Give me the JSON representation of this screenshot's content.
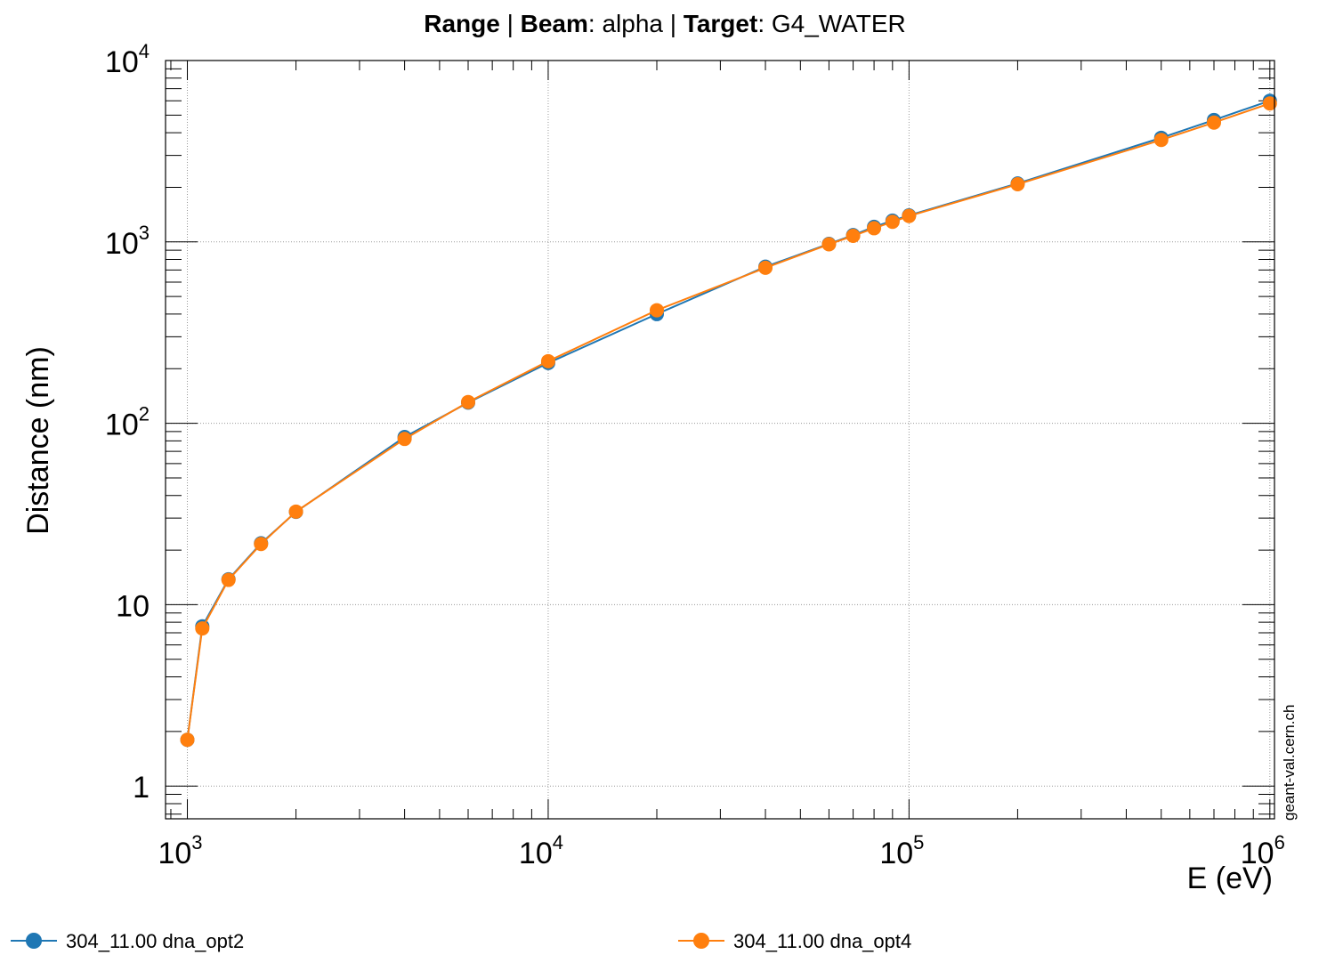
{
  "chart_data": {
    "type": "line",
    "title_parts": [
      {
        "text": "Range",
        "bold": true
      },
      {
        "text": " | ",
        "bold": false
      },
      {
        "text": "Beam",
        "bold": true
      },
      {
        "text": ": alpha | ",
        "bold": false
      },
      {
        "text": "Target",
        "bold": true
      },
      {
        "text": ": G4_WATER",
        "bold": false
      }
    ],
    "xlabel": "E (eV)",
    "ylabel": "Distance (nm)",
    "x_scale": "log",
    "y_scale": "log",
    "xlim": [
      870,
      1030000
    ],
    "ylim": [
      0.66,
      10000
    ],
    "grid": true,
    "x_ticks": [
      {
        "base": "10",
        "exp": "3"
      },
      {
        "base": "10",
        "exp": "4"
      },
      {
        "base": "10",
        "exp": "5"
      },
      {
        "base": "10",
        "exp": "6"
      }
    ],
    "y_ticks": [
      {
        "label": "1"
      },
      {
        "label": "10"
      },
      {
        "base": "10",
        "exp": "2"
      },
      {
        "base": "10",
        "exp": "3"
      },
      {
        "base": "10",
        "exp": "4"
      }
    ],
    "watermark": "geant-val.cern.ch",
    "legend_position": "bottom",
    "series": [
      {
        "name": "304_11.00 dna_opt2",
        "color": "#1f77b4",
        "x": [
          1000,
          1100,
          1300,
          1600,
          2000,
          4000,
          6000,
          10000,
          20000,
          40000,
          60000,
          70000,
          80000,
          90000,
          100000,
          200000,
          500000,
          700000,
          1000000
        ],
        "y": [
          1.8,
          7.6,
          13.8,
          21.8,
          32.5,
          84,
          130,
          215,
          400,
          730,
          975,
          1090,
          1210,
          1310,
          1400,
          2100,
          3750,
          4700,
          6000
        ]
      },
      {
        "name": "304_11.00 dna_opt4",
        "color": "#ff7f0e",
        "x": [
          1000,
          1100,
          1300,
          1600,
          2000,
          4000,
          6000,
          10000,
          20000,
          40000,
          60000,
          70000,
          80000,
          90000,
          100000,
          200000,
          500000,
          700000,
          1000000
        ],
        "y": [
          1.8,
          7.4,
          13.7,
          21.6,
          32.6,
          82,
          131,
          220,
          420,
          720,
          970,
          1080,
          1190,
          1290,
          1390,
          2080,
          3650,
          4550,
          5800
        ]
      }
    ]
  }
}
